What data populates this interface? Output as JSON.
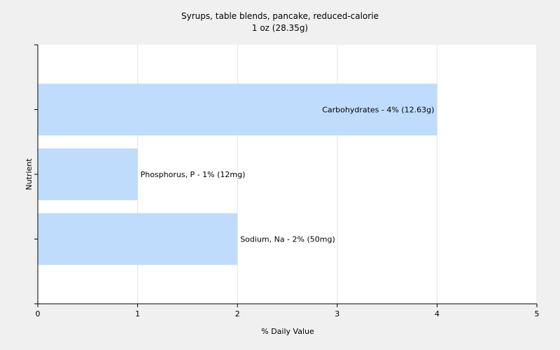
{
  "chart_data": {
    "type": "bar",
    "orientation": "horizontal",
    "title": "Syrups, table blends, pancake, reduced-calorie",
    "subtitle": "1 oz (28.35g)",
    "xlabel": "% Daily Value",
    "ylabel": "Nutrient",
    "xlim": [
      0,
      5
    ],
    "xticks": [
      0,
      1,
      2,
      3,
      4,
      5
    ],
    "grid": true,
    "bar_color": "#c0dcfc",
    "plot_background": "#ffffff",
    "categories": [
      "Carbohydrates",
      "Phosphorus, P",
      "Sodium, Na"
    ],
    "values": [
      4,
      1,
      2
    ],
    "labels": [
      "Carbohydrates - 4% (12.63g)",
      "Phosphorus, P - 1% (12mg)",
      "Sodium, Na - 2% (50mg)"
    ]
  }
}
